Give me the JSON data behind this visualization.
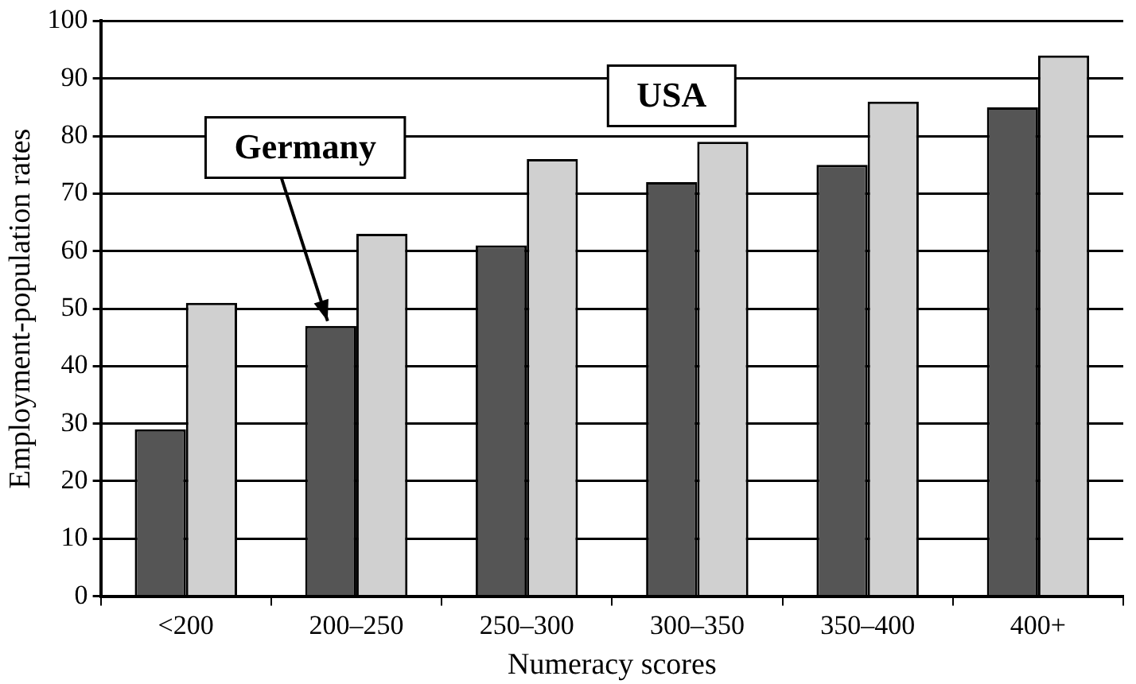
{
  "chart_data": {
    "type": "bar",
    "xlabel": "Numeracy scores",
    "ylabel": "Employment-population rates",
    "categories": [
      "<200",
      "200–250",
      "250–300",
      "300–350",
      "350–400",
      "400+"
    ],
    "series": [
      {
        "name": "Germany",
        "color": "#555555",
        "values": [
          29,
          47,
          61,
          72,
          75,
          85
        ]
      },
      {
        "name": "USA",
        "color": "#d0d0d0",
        "values": [
          51,
          63,
          76,
          79,
          86,
          94
        ]
      }
    ],
    "ylim": [
      0,
      100
    ],
    "yticks": [
      0,
      10,
      20,
      30,
      40,
      50,
      60,
      70,
      80,
      90,
      100
    ],
    "grid": "y",
    "legend": false
  }
}
